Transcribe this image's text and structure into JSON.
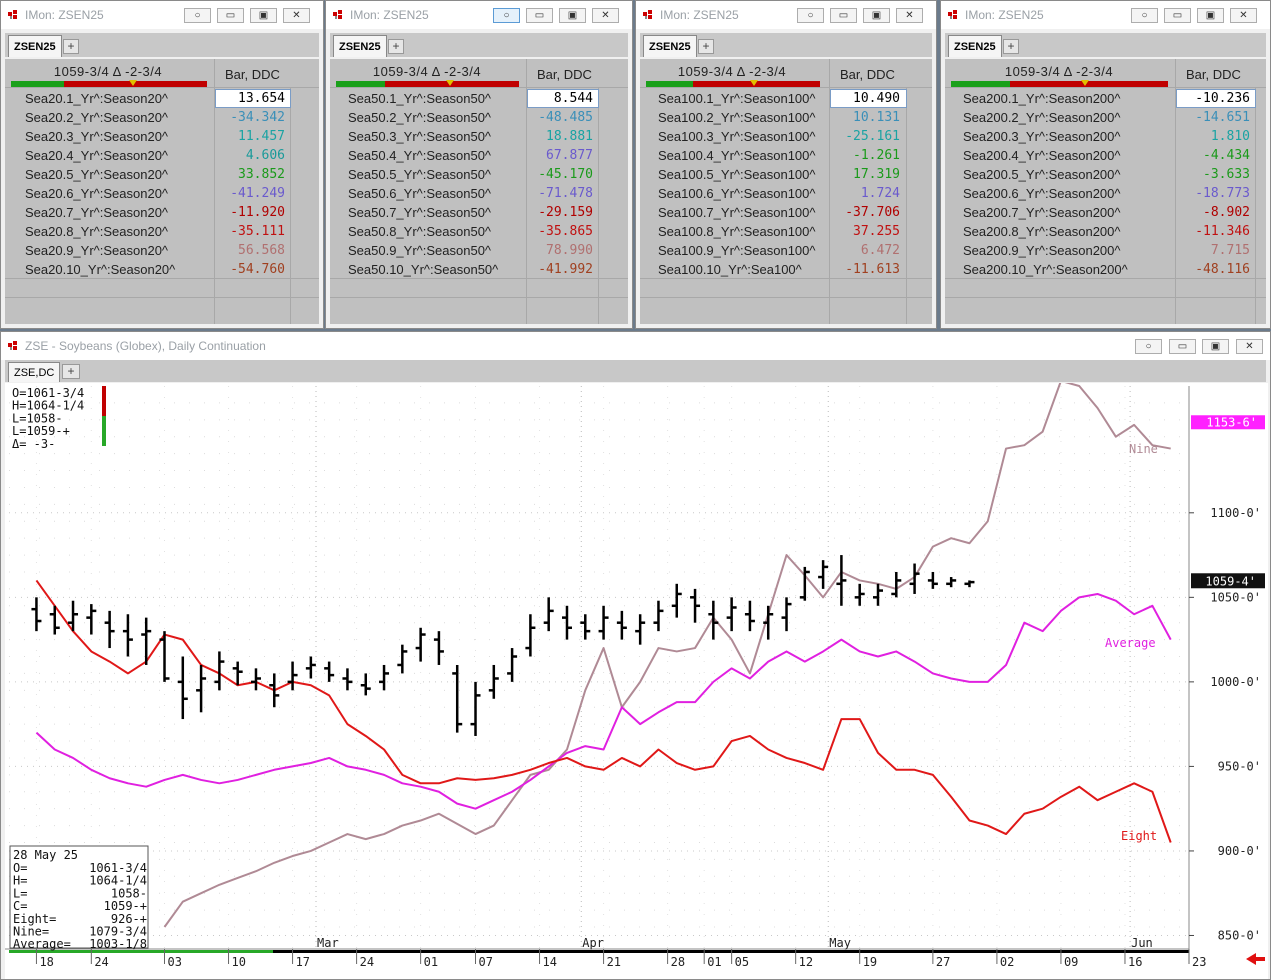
{
  "monitors": [
    {
      "title": "IMon: ZSEN25",
      "tab": "ZSEN25",
      "header": "1059-3/4 Δ -2-3/4",
      "column": "Bar, DDC",
      "rows": [
        {
          "name": "Sea20.1_Yr^:Season20^",
          "value": "13.654",
          "color": "#000000"
        },
        {
          "name": "Sea20.2_Yr^:Season20^",
          "value": "-34.342",
          "color": "#3a8fb8"
        },
        {
          "name": "Sea20.3_Yr^:Season20^",
          "value": "11.457",
          "color": "#1aa3a3"
        },
        {
          "name": "Sea20.4_Yr^:Season20^",
          "value": "4.606",
          "color": "#1a9a9a"
        },
        {
          "name": "Sea20.5_Yr^:Season20^",
          "value": "33.852",
          "color": "#1a9a1a"
        },
        {
          "name": "Sea20.6_Yr^:Season20^",
          "value": "-41.249",
          "color": "#6a5acd"
        },
        {
          "name": "Sea20.7_Yr^:Season20^",
          "value": "-11.920",
          "color": "#b00000"
        },
        {
          "name": "Sea20.8_Yr^:Season20^",
          "value": "-35.111",
          "color": "#c01010"
        },
        {
          "name": "Sea20.9_Yr^:Season20^",
          "value": "56.568",
          "color": "#b07070"
        },
        {
          "name": "Sea20.10_Yr^:Season20^",
          "value": "-54.760",
          "color": "#a04020"
        }
      ]
    },
    {
      "title": "IMon: ZSEN25",
      "tab": "ZSEN25",
      "header": "1059-3/4 Δ -2-3/4",
      "column": "Bar, DDC",
      "rows": [
        {
          "name": "Sea50.1_Yr^:Season50^",
          "value": "8.544",
          "color": "#000000"
        },
        {
          "name": "Sea50.2_Yr^:Season50^",
          "value": "-48.485",
          "color": "#3a8fb8"
        },
        {
          "name": "Sea50.3_Yr^:Season50^",
          "value": "18.881",
          "color": "#1aa3a3"
        },
        {
          "name": "Sea50.4_Yr^:Season50^",
          "value": "67.877",
          "color": "#6a5acd"
        },
        {
          "name": "Sea50.5_Yr^:Season50^",
          "value": "-45.170",
          "color": "#1a9a1a"
        },
        {
          "name": "Sea50.6_Yr^:Season50^",
          "value": "-71.478",
          "color": "#6a5acd"
        },
        {
          "name": "Sea50.7_Yr^:Season50^",
          "value": "-29.159",
          "color": "#b00000"
        },
        {
          "name": "Sea50.8_Yr^:Season50^",
          "value": "-35.865",
          "color": "#c01010"
        },
        {
          "name": "Sea50.9_Yr^:Season50^",
          "value": "78.990",
          "color": "#b07070"
        },
        {
          "name": "Sea50.10_Yr^:Season50^",
          "value": "-41.992",
          "color": "#a04020"
        }
      ]
    },
    {
      "title": "IMon: ZSEN25",
      "tab": "ZSEN25",
      "header": "1059-3/4 Δ -2-3/4",
      "column": "Bar, DDC",
      "rows": [
        {
          "name": "Sea100.1_Yr^:Season100^",
          "value": "10.490",
          "color": "#000000"
        },
        {
          "name": "Sea100.2_Yr^:Season100^",
          "value": "10.131",
          "color": "#3a8fb8"
        },
        {
          "name": "Sea100.3_Yr^:Season100^",
          "value": "-25.161",
          "color": "#1aa3a3"
        },
        {
          "name": "Sea100.4_Yr^:Season100^",
          "value": "-1.261",
          "color": "#1a9a1a"
        },
        {
          "name": "Sea100.5_Yr^:Season100^",
          "value": "17.319",
          "color": "#1a9a1a"
        },
        {
          "name": "Sea100.6_Yr^:Season100^",
          "value": "1.724",
          "color": "#6a5acd"
        },
        {
          "name": "Sea100.7_Yr^:Season100^",
          "value": "-37.706",
          "color": "#b00000"
        },
        {
          "name": "Sea100.8_Yr^:Season100^",
          "value": "37.255",
          "color": "#c01010"
        },
        {
          "name": "Sea100.9_Yr^:Season100^",
          "value": "6.472",
          "color": "#b07070"
        },
        {
          "name": "Sea100.10_Yr^:Sea100^",
          "value": "-11.613",
          "color": "#a04020"
        }
      ]
    },
    {
      "title": "IMon: ZSEN25",
      "tab": "ZSEN25",
      "header": "1059-3/4 Δ -2-3/4",
      "column": "Bar, DDC",
      "rows": [
        {
          "name": "Sea200.1_Yr^:Season200^",
          "value": "-10.236",
          "color": "#000000"
        },
        {
          "name": "Sea200.2_Yr^:Season200^",
          "value": "-14.651",
          "color": "#3a8fb8"
        },
        {
          "name": "Sea200.3_Yr^:Season200^",
          "value": "1.810",
          "color": "#1aa3a3"
        },
        {
          "name": "Sea200.4_Yr^:Season200^",
          "value": "-4.434",
          "color": "#1a9a1a"
        },
        {
          "name": "Sea200.5_Yr^:Season200^",
          "value": "-3.633",
          "color": "#1a9a1a"
        },
        {
          "name": "Sea200.6_Yr^:Season200^",
          "value": "-18.773",
          "color": "#6a5acd"
        },
        {
          "name": "Sea200.7_Yr^:Season200^",
          "value": "-8.902",
          "color": "#b00000"
        },
        {
          "name": "Sea200.8_Yr^:Season200^",
          "value": "-11.346",
          "color": "#c01010"
        },
        {
          "name": "Sea200.9_Yr^:Season200^",
          "value": "7.715",
          "color": "#b07070"
        },
        {
          "name": "Sea200.10_Yr^:Season200^",
          "value": "-48.116",
          "color": "#a04020"
        }
      ]
    }
  ],
  "chart_window": {
    "title": "ZSE - Soybeans (Globex), Daily Continuation",
    "tab": "ZSE,DC"
  },
  "chart_data": {
    "type": "line",
    "y_ticks": [
      "1100-0'",
      "1050-0'",
      "1000-0'",
      "950-0'",
      "900-0'",
      "850-0'"
    ],
    "y_tick_values": [
      1100,
      1050,
      1000,
      950,
      900,
      850
    ],
    "ylim": [
      842,
      1175
    ],
    "price_marker": "1059-4'",
    "nine_marker": "1153-6'",
    "month_labels": [
      "Mar",
      "Apr",
      "May",
      "Jun"
    ],
    "month_positions": [
      31,
      60,
      87,
      120
    ],
    "x_labels": [
      "18",
      "24",
      "03",
      "10",
      "17",
      "24",
      "01",
      "07",
      "14",
      "21",
      "28",
      "01",
      "05",
      "12",
      "19",
      "27",
      "02",
      "09",
      "16",
      "23"
    ],
    "x_positions": [
      0,
      6,
      14,
      21,
      28,
      35,
      42,
      48,
      55,
      62,
      69,
      73,
      76,
      83,
      90,
      98,
      105,
      112,
      119,
      126
    ],
    "xlim": [
      -3,
      126
    ],
    "top_readout": {
      "o": "O=1061-3/4",
      "h": "H=1064-1/4",
      "l": "L=1058-",
      "c": "L=1059-+",
      "d": "Δ=  -3-"
    },
    "info_box": {
      "date": "28 May 25",
      "o_label": "O=",
      "o_value": "1061-3/4",
      "h_label": "H=",
      "h_value": "1064-1/4",
      "l_label": "L=",
      "l_value": "1058-",
      "c_label": "C=",
      "c_value": "1059-+",
      "eight_label": "Eight=",
      "eight_value": "926-+",
      "nine_label": "Nine=",
      "nine_value": "1079-3/4",
      "average_label": "Average=",
      "average_value": "1003-1/8"
    },
    "series": [
      {
        "name": "Nine",
        "color": "#b08a95",
        "x": [
          14,
          16,
          18,
          20,
          22,
          24,
          26,
          28,
          30,
          32,
          34,
          36,
          38,
          40,
          42,
          44,
          46,
          48,
          50,
          52,
          54,
          56,
          58,
          60,
          62,
          64,
          66,
          68,
          70,
          72,
          74,
          76,
          78,
          80,
          82,
          84,
          86,
          88,
          90,
          92,
          94,
          96,
          98,
          100,
          102,
          104,
          106,
          108,
          110,
          112,
          114,
          116,
          118,
          120,
          122,
          124
        ],
        "values": [
          855,
          870,
          875,
          880,
          884,
          888,
          893,
          897,
          900,
          905,
          910,
          907,
          910,
          915,
          918,
          922,
          916,
          910,
          915,
          930,
          945,
          948,
          960,
          995,
          1020,
          985,
          1000,
          1020,
          1018,
          1020,
          1038,
          1025,
          1005,
          1040,
          1075,
          1063,
          1050,
          1065,
          1060,
          1058,
          1055,
          1062,
          1080,
          1085,
          1082,
          1095,
          1138,
          1140,
          1148,
          1178,
          1175,
          1162,
          1145,
          1152,
          1140,
          1138
        ]
      },
      {
        "name": "Average",
        "color": "#e020e0",
        "x": [
          0,
          2,
          4,
          6,
          8,
          10,
          12,
          14,
          16,
          18,
          20,
          22,
          24,
          26,
          28,
          30,
          32,
          34,
          36,
          38,
          40,
          42,
          44,
          46,
          48,
          50,
          52,
          54,
          56,
          58,
          60,
          62,
          64,
          66,
          68,
          70,
          72,
          74,
          76,
          78,
          80,
          82,
          84,
          86,
          88,
          90,
          92,
          94,
          96,
          98,
          100,
          102,
          104,
          106,
          108,
          110,
          112,
          114,
          116,
          118,
          120,
          122,
          124
        ],
        "values": [
          970,
          960,
          955,
          948,
          943,
          940,
          938,
          942,
          945,
          942,
          940,
          942,
          945,
          948,
          950,
          952,
          955,
          950,
          948,
          945,
          940,
          938,
          935,
          928,
          925,
          930,
          935,
          942,
          950,
          958,
          962,
          960,
          985,
          975,
          982,
          988,
          988,
          1000,
          1008,
          1002,
          1012,
          1018,
          1012,
          1018,
          1025,
          1018,
          1015,
          1018,
          1012,
          1005,
          1002,
          1000,
          1000,
          1010,
          1035,
          1030,
          1042,
          1050,
          1052,
          1048,
          1040,
          1045,
          1025
        ]
      },
      {
        "name": "Eight",
        "color": "#e01818",
        "x": [
          0,
          2,
          4,
          6,
          8,
          10,
          12,
          14,
          16,
          18,
          20,
          22,
          24,
          26,
          28,
          30,
          32,
          34,
          36,
          38,
          40,
          42,
          44,
          46,
          48,
          50,
          52,
          54,
          56,
          58,
          60,
          62,
          64,
          66,
          68,
          70,
          72,
          74,
          76,
          78,
          80,
          82,
          84,
          86,
          88,
          90,
          92,
          94,
          96,
          98,
          100,
          102,
          104,
          106,
          108,
          110,
          112,
          114,
          116,
          118,
          120,
          122,
          124
        ],
        "values": [
          1060,
          1045,
          1030,
          1018,
          1012,
          1005,
          1012,
          1028,
          1025,
          1010,
          1005,
          998,
          1000,
          995,
          1000,
          998,
          992,
          975,
          968,
          960,
          945,
          940,
          940,
          943,
          942,
          943,
          945,
          948,
          952,
          955,
          950,
          948,
          955,
          950,
          960,
          952,
          948,
          950,
          965,
          968,
          960,
          955,
          952,
          948,
          978,
          978,
          958,
          948,
          948,
          945,
          932,
          918,
          915,
          910,
          922,
          925,
          932,
          938,
          930,
          935,
          940,
          935,
          905
        ]
      },
      {
        "name": "Bars",
        "color": "#000000"
      }
    ],
    "bars": [
      [
        0,
        1050,
        1030,
        1043,
        1036
      ],
      [
        2,
        1045,
        1028,
        1040,
        1032
      ],
      [
        4,
        1048,
        1030,
        1035,
        1040
      ],
      [
        6,
        1046,
        1028,
        1038,
        1042
      ],
      [
        8,
        1042,
        1020,
        1035,
        1030
      ],
      [
        10,
        1040,
        1015,
        1030,
        1025
      ],
      [
        12,
        1038,
        1010,
        1028,
        1030
      ],
      [
        14,
        1030,
        1000,
        1025,
        1002
      ],
      [
        16,
        1015,
        978,
        1000,
        990
      ],
      [
        18,
        1010,
        982,
        995,
        1002
      ],
      [
        20,
        1018,
        995,
        1000,
        1012
      ],
      [
        22,
        1012,
        998,
        1008,
        1006
      ],
      [
        24,
        1008,
        995,
        1000,
        1002
      ],
      [
        26,
        1005,
        985,
        998,
        992
      ],
      [
        28,
        1012,
        995,
        1000,
        1004
      ],
      [
        30,
        1015,
        1002,
        1008,
        1010
      ],
      [
        32,
        1012,
        1000,
        1008,
        1004
      ],
      [
        34,
        1008,
        995,
        1002,
        1000
      ],
      [
        36,
        1005,
        992,
        998,
        996
      ],
      [
        38,
        1010,
        995,
        1000,
        1005
      ],
      [
        40,
        1022,
        1005,
        1010,
        1018
      ],
      [
        42,
        1032,
        1012,
        1020,
        1028
      ],
      [
        44,
        1030,
        1010,
        1025,
        1018
      ],
      [
        46,
        1010,
        970,
        1005,
        975
      ],
      [
        48,
        1000,
        968,
        975,
        992
      ],
      [
        50,
        1010,
        990,
        995,
        1002
      ],
      [
        52,
        1020,
        1000,
        1005,
        1015
      ],
      [
        54,
        1040,
        1015,
        1020,
        1032
      ],
      [
        56,
        1050,
        1030,
        1035,
        1042
      ],
      [
        58,
        1045,
        1025,
        1038,
        1032
      ],
      [
        60,
        1040,
        1025,
        1035,
        1030
      ],
      [
        62,
        1045,
        1025,
        1030,
        1038
      ],
      [
        64,
        1042,
        1025,
        1035,
        1032
      ],
      [
        66,
        1040,
        1022,
        1030,
        1035
      ],
      [
        68,
        1048,
        1030,
        1035,
        1042
      ],
      [
        70,
        1058,
        1038,
        1045,
        1052
      ],
      [
        72,
        1055,
        1035,
        1050,
        1045
      ],
      [
        74,
        1048,
        1025,
        1040,
        1035
      ],
      [
        76,
        1050,
        1030,
        1038,
        1044
      ],
      [
        78,
        1048,
        1030,
        1040,
        1036
      ],
      [
        80,
        1045,
        1025,
        1035,
        1040
      ],
      [
        82,
        1050,
        1030,
        1038,
        1046
      ],
      [
        84,
        1068,
        1048,
        1050,
        1065
      ],
      [
        86,
        1072,
        1055,
        1062,
        1068
      ],
      [
        88,
        1075,
        1045,
        1058,
        1060
      ],
      [
        90,
        1058,
        1045,
        1050,
        1052
      ],
      [
        92,
        1058,
        1045,
        1050,
        1054
      ],
      [
        94,
        1065,
        1050,
        1052,
        1060
      ],
      [
        96,
        1070,
        1052,
        1058,
        1064
      ],
      [
        98,
        1065,
        1055,
        1060,
        1058
      ],
      [
        100,
        1062,
        1056,
        1058,
        1060
      ],
      [
        102,
        1060,
        1056,
        1058,
        1059
      ]
    ]
  }
}
